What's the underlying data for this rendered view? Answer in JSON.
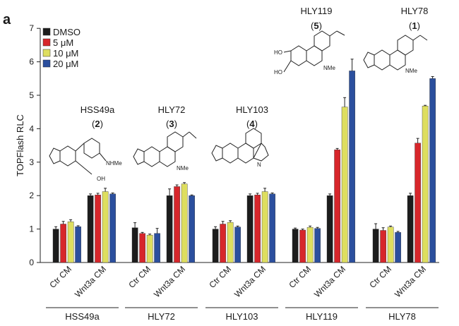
{
  "panel_label": "a",
  "chart_data": {
    "type": "bar",
    "title": "",
    "ylabel": "TOPFlash RLC",
    "xlabel": "",
    "ylim": [
      0,
      7
    ],
    "yticks": [
      0,
      1,
      2,
      3,
      4,
      5,
      6,
      7
    ],
    "legend_placement": "top-left",
    "conditions": [
      "Ctr CM",
      "Wnt3a CM"
    ],
    "series": [
      {
        "name": "DMSO",
        "color": "#1c1c1c"
      },
      {
        "name": "5 μM",
        "color": "#d7262b"
      },
      {
        "name": "10 μM",
        "color": "#dede5f"
      },
      {
        "name": "20 μM",
        "color": "#2b4f9e"
      }
    ],
    "groups": [
      {
        "name": "HSS49a",
        "compound_name": "HSS49a",
        "compound_number": "2",
        "values": [
          [
            1.0,
            1.15,
            1.22,
            1.07
          ],
          [
            2.0,
            2.02,
            2.12,
            2.05
          ]
        ],
        "errors": [
          [
            0.07,
            0.08,
            0.06,
            0.03
          ],
          [
            0.05,
            0.05,
            0.1,
            0.03
          ]
        ]
      },
      {
        "name": "HLY72",
        "compound_name": "HLY72",
        "compound_number": "3",
        "values": [
          [
            1.04,
            0.87,
            0.82,
            0.87
          ],
          [
            2.0,
            2.27,
            2.35,
            2.0
          ]
        ],
        "errors": [
          [
            0.15,
            0.03,
            0.03,
            0.15
          ],
          [
            0.2,
            0.05,
            0.04,
            0.02
          ]
        ]
      },
      {
        "name": "HLY103",
        "compound_name": "HLY103",
        "compound_number": "4",
        "values": [
          [
            1.0,
            1.15,
            1.2,
            1.06
          ],
          [
            2.0,
            2.02,
            2.12,
            2.05
          ]
        ],
        "errors": [
          [
            0.07,
            0.08,
            0.05,
            0.03
          ],
          [
            0.05,
            0.05,
            0.1,
            0.03
          ]
        ]
      },
      {
        "name": "HLY119",
        "compound_name": "HLY119",
        "compound_number": "5",
        "values": [
          [
            1.0,
            0.97,
            1.05,
            1.02
          ],
          [
            2.0,
            3.37,
            4.65,
            5.73
          ]
        ],
        "errors": [
          [
            0.03,
            0.03,
            0.04,
            0.03
          ],
          [
            0.05,
            0.04,
            0.28,
            0.35
          ]
        ]
      },
      {
        "name": "HLY78",
        "compound_name": "HLY78",
        "compound_number": "1",
        "values": [
          [
            1.0,
            0.96,
            1.06,
            0.9
          ],
          [
            2.0,
            3.57,
            4.68,
            5.5
          ]
        ],
        "errors": [
          [
            0.16,
            0.08,
            0.03,
            0.03
          ],
          [
            0.07,
            0.14,
            0.02,
            0.06
          ]
        ]
      }
    ],
    "structure_labels": {
      "hss49a": [
        "OH",
        "NHMe"
      ],
      "hly72": [
        "NMe"
      ],
      "hly119": [
        "HO",
        "HO",
        "NMe"
      ],
      "hly78": [
        "NMe"
      ]
    }
  }
}
